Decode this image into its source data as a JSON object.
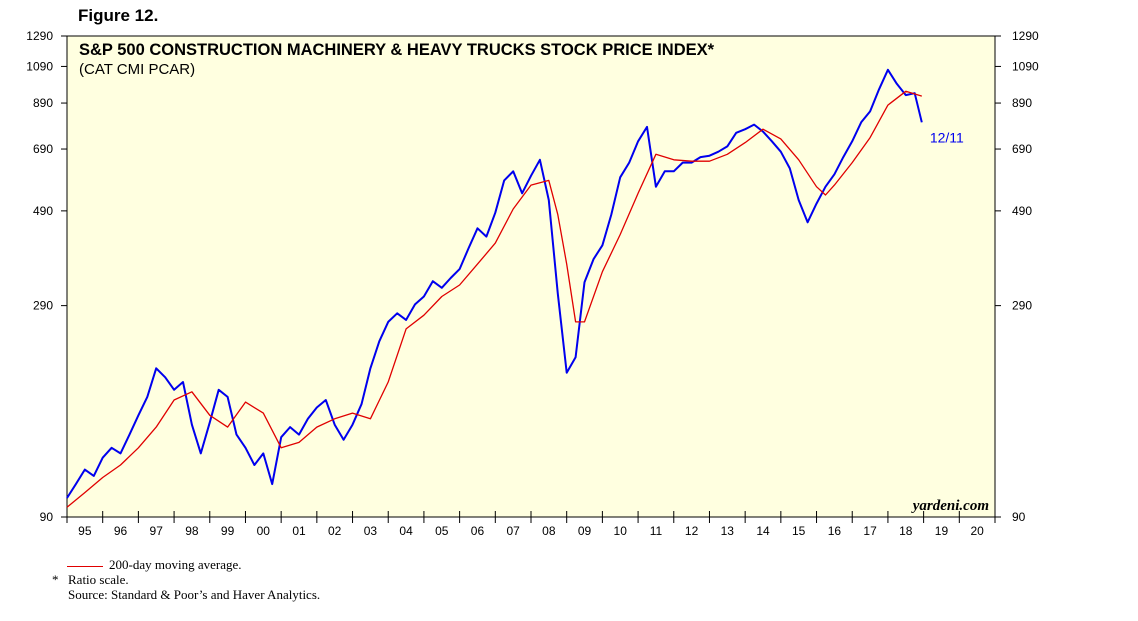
{
  "figure_label": "Figure 12.",
  "chart_data": {
    "type": "line",
    "title": "S&P 500 CONSTRUCTION MACHINERY & HEAVY TRUCKS STOCK PRICE INDEX*",
    "subtitle": "(CAT CMI PCAR)",
    "scale": "log",
    "ylim": [
      90,
      1290
    ],
    "yticks": [
      90,
      290,
      490,
      690,
      890,
      1090,
      1290
    ],
    "xlim": [
      1995,
      2021
    ],
    "x_tick_labels": [
      "95",
      "96",
      "97",
      "98",
      "99",
      "00",
      "01",
      "02",
      "03",
      "04",
      "05",
      "06",
      "07",
      "08",
      "09",
      "10",
      "11",
      "12",
      "13",
      "14",
      "15",
      "16",
      "17",
      "18",
      "19",
      "20"
    ],
    "x_tick_years": [
      1995,
      1996,
      1997,
      1998,
      1999,
      2000,
      2001,
      2002,
      2003,
      2004,
      2005,
      2006,
      2007,
      2008,
      2009,
      2010,
      2011,
      2012,
      2013,
      2014,
      2015,
      2016,
      2017,
      2018,
      2019,
      2020
    ],
    "end_label": "12/11",
    "watermark": "yardeni.com",
    "grid": false,
    "series": [
      {
        "name": "",
        "color": "#0000ee",
        "x": [
          1995.0,
          1995.25,
          1995.5,
          1995.75,
          1996.0,
          1996.25,
          1996.5,
          1996.75,
          1997.0,
          1997.25,
          1997.5,
          1997.75,
          1998.0,
          1998.25,
          1998.5,
          1998.75,
          1999.0,
          1999.25,
          1999.5,
          1999.75,
          2000.0,
          2000.25,
          2000.5,
          2000.75,
          2001.0,
          2001.25,
          2001.5,
          2001.75,
          2002.0,
          2002.25,
          2002.5,
          2002.75,
          2003.0,
          2003.25,
          2003.5,
          2003.75,
          2004.0,
          2004.25,
          2004.5,
          2004.75,
          2005.0,
          2005.25,
          2005.5,
          2005.75,
          2006.0,
          2006.25,
          2006.5,
          2006.75,
          2007.0,
          2007.25,
          2007.5,
          2007.75,
          2008.0,
          2008.25,
          2008.5,
          2008.75,
          2009.0,
          2009.25,
          2009.5,
          2009.75,
          2010.0,
          2010.25,
          2010.5,
          2010.75,
          2011.0,
          2011.25,
          2011.5,
          2011.75,
          2012.0,
          2012.25,
          2012.5,
          2012.75,
          2013.0,
          2013.25,
          2013.5,
          2013.75,
          2014.0,
          2014.25,
          2014.5,
          2014.75,
          2015.0,
          2015.25,
          2015.5,
          2015.75,
          2016.0,
          2016.25,
          2016.5,
          2016.75,
          2017.0,
          2017.25,
          2017.5,
          2017.75,
          2018.0,
          2018.25,
          2018.5,
          2018.75,
          2018.95
        ],
        "y": [
          100,
          108,
          117,
          113,
          125,
          132,
          128,
          142,
          158,
          175,
          205,
          195,
          182,
          190,
          150,
          128,
          152,
          182,
          175,
          142,
          132,
          120,
          128,
          108,
          140,
          148,
          142,
          155,
          165,
          172,
          150,
          138,
          150,
          168,
          205,
          238,
          265,
          278,
          268,
          292,
          305,
          332,
          320,
          338,
          355,
          398,
          445,
          425,
          485,
          580,
          610,
          540,
          595,
          650,
          520,
          310,
          200,
          218,
          330,
          375,
          405,
          480,
          590,
          640,
          720,
          780,
          560,
          610,
          610,
          640,
          640,
          660,
          665,
          680,
          700,
          755,
          770,
          790,
          760,
          720,
          680,
          620,
          520,
          460,
          510,
          560,
          600,
          660,
          720,
          800,
          850,
          960,
          1070,
          990,
          930,
          940,
          800
        ]
      },
      {
        "name": "200-day moving average.",
        "color": "#e00000",
        "x": [
          1995.0,
          1995.5,
          1996.0,
          1996.5,
          1997.0,
          1997.5,
          1998.0,
          1998.5,
          1999.0,
          1999.5,
          2000.0,
          2000.5,
          2001.0,
          2001.5,
          2002.0,
          2002.5,
          2003.0,
          2003.5,
          2004.0,
          2004.5,
          2005.0,
          2005.5,
          2006.0,
          2006.5,
          2007.0,
          2007.5,
          2008.0,
          2008.5,
          2008.75,
          2009.0,
          2009.25,
          2009.5,
          2010.0,
          2010.5,
          2011.0,
          2011.5,
          2012.0,
          2012.5,
          2013.0,
          2013.5,
          2014.0,
          2014.5,
          2015.0,
          2015.5,
          2016.0,
          2016.25,
          2016.5,
          2017.0,
          2017.5,
          2018.0,
          2018.5,
          2018.95
        ],
        "y": [
          95,
          103,
          112,
          120,
          132,
          148,
          172,
          180,
          158,
          148,
          170,
          160,
          132,
          136,
          148,
          155,
          160,
          155,
          190,
          255,
          275,
          305,
          325,
          365,
          410,
          495,
          565,
          580,
          480,
          365,
          265,
          265,
          350,
          430,
          540,
          670,
          650,
          645,
          645,
          670,
          715,
          770,
          730,
          650,
          560,
          535,
          565,
          640,
          735,
          880,
          950,
          925
        ]
      }
    ],
    "legend": {
      "ma_label": "200-day moving average.",
      "ratio_note_star": "*",
      "ratio_note": "Ratio scale.",
      "source": "Source: Standard & Poor’s and Haver Analytics."
    }
  }
}
